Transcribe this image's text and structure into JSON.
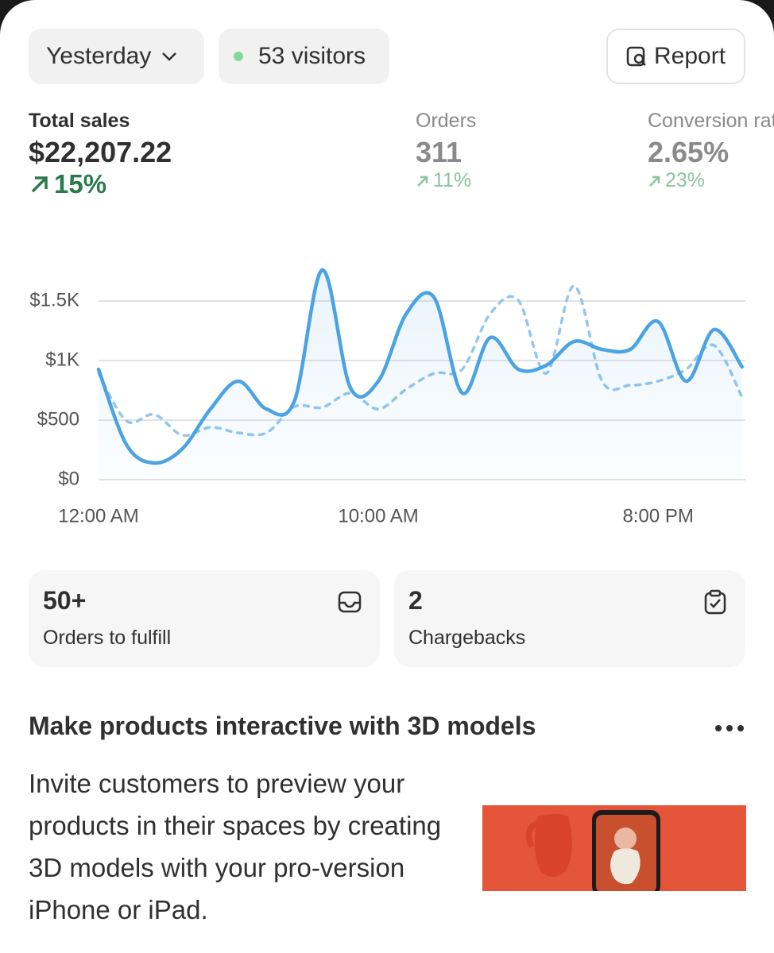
{
  "header": {
    "period": "Yesterday",
    "visitors": "53 visitors",
    "report": "Report"
  },
  "metrics": [
    {
      "label": "Total sales",
      "value": "$22,207.22",
      "change": "15%"
    },
    {
      "label": "Orders",
      "value": "311",
      "change": "11%"
    },
    {
      "label": "Conversion rate",
      "value": "2.65%",
      "change": "23%"
    }
  ],
  "chart_data": {
    "type": "line",
    "categories": [
      "12:00 AM",
      null,
      null,
      null,
      null,
      null,
      null,
      null,
      null,
      null,
      "10:00 AM",
      null,
      null,
      null,
      null,
      null,
      null,
      null,
      null,
      null,
      "8:00 PM",
      null,
      null,
      null
    ],
    "series": [
      {
        "color": "#4ba3e3",
        "style": "solid",
        "area": true,
        "values": [
          927,
          293,
          140,
          260,
          593,
          827,
          593,
          660,
          1760,
          773,
          827,
          1393,
          1527,
          727,
          1193,
          927,
          960,
          1160,
          1093,
          1093,
          1327,
          827,
          1260,
          947
        ]
      },
      {
        "color": "#93c7ec",
        "style": "dashed",
        "values": [
          893,
          493,
          547,
          373,
          440,
          393,
          393,
          613,
          607,
          727,
          593,
          760,
          893,
          927,
          1393,
          1507,
          893,
          1627,
          827,
          793,
          827,
          927,
          1127,
          693
        ]
      }
    ],
    "ylim": [
      0,
      1800
    ],
    "yticks": [
      {
        "value": 0,
        "label": "$0"
      },
      {
        "value": 500,
        "label": "$500"
      },
      {
        "value": 1000,
        "label": "$1K"
      },
      {
        "value": 1500,
        "label": "$1.5K"
      }
    ],
    "grid": true
  },
  "cards": [
    {
      "value": "50+",
      "label": "Orders to fulfill"
    },
    {
      "value": "2",
      "label": "Chargebacks"
    }
  ],
  "promo": {
    "title": "Make products interactive with 3D models",
    "body": "Invite customers to preview your products in their spaces by creating 3D models with your pro-version iPhone or iPad."
  }
}
